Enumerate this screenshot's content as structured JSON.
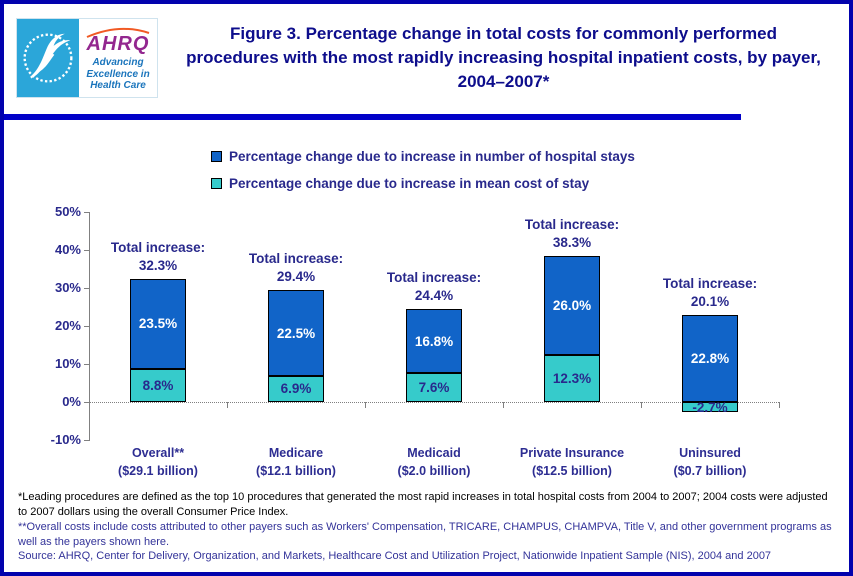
{
  "logo": {
    "ahrq": "AHRQ",
    "tagline": "Advancing Excellence in Health Care"
  },
  "header": {
    "title": "Figure 3. Percentage change in total costs for commonly performed procedures with the most rapidly increasing hospital inpatient costs, by payer, 2004–2007*"
  },
  "chart_data": {
    "type": "bar",
    "stacked": true,
    "categories": [
      "Overall**",
      "Medicare",
      "Medicaid",
      "Private Insurance",
      "Uninsured"
    ],
    "category_sublabels": [
      "($29.1 billion)",
      "($12.1 billion)",
      "($2.0 billion)",
      "($12.5 billion)",
      "($0.7 billion)"
    ],
    "series": [
      {
        "name": "Percentage change due to increase in number of hospital stays",
        "color": "#1164c8",
        "label_color": "#ffffff",
        "values": [
          23.5,
          22.5,
          16.8,
          26.0,
          22.8
        ]
      },
      {
        "name": "Percentage change due to increase in mean cost of stay",
        "color": "#36cbcb",
        "label_color": "#29298c",
        "values": [
          8.8,
          6.9,
          7.6,
          12.3,
          -2.7
        ]
      }
    ],
    "totals": {
      "prefix": "Total increase:",
      "values": [
        32.3,
        29.4,
        24.4,
        38.3,
        20.1
      ]
    },
    "xlabel": "",
    "ylabel": "",
    "ylim": [
      -10,
      50
    ],
    "ytick_step": 10,
    "yticks": [
      "50%",
      "40%",
      "30%",
      "20%",
      "10%",
      "0%",
      "-10%"
    ],
    "legend_position": "top",
    "grid": "zero-line-dotted"
  },
  "footnotes": {
    "note1": "*Leading procedures are defined as the top 10 procedures that generated the most rapid increases in total hospital costs from 2004 to 2007; 2004 costs were adjusted to 2007 dollars using the overall Consumer Price Index.",
    "note2": "**Overall costs include costs attributed to other payers such as Workers' Compensation, TRICARE, CHAMPUS, CHAMPVA, Title V, and other government programs as well as the payers shown here.",
    "source": "Source: AHRQ, Center for Delivery, Organization, and Markets, Healthcare Cost and Utilization Project, Nationwide Inpatient Sample (NIS), 2004 and 2007"
  },
  "colors": {
    "bar_stays_blue": "#1164c8",
    "bar_cost_teal": "#36cbcb",
    "chart_text_navy": "#29298c",
    "title_navy": "#0d0d8c",
    "page_border_blue": "#0202ad",
    "divider_blue": "#0101c8",
    "logo_cyan": "#2ba6d9",
    "ahrq_purple": "#93278f",
    "logo_tagline_blue": "#1b75bc",
    "footnote_black": "#000000",
    "footnote_navy": "#333399"
  }
}
